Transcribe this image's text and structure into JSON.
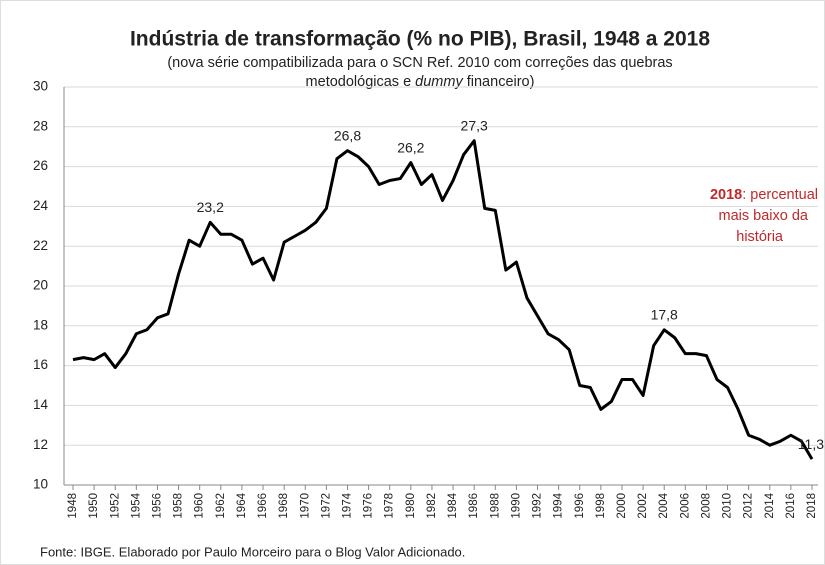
{
  "chart_data": {
    "type": "line",
    "title": "Indústria de transformação (% no PIB), Brasil, 1948 a 2018",
    "subtitle": [
      "(nova série compatibilizada  para o SCN Ref. 2010 com correções das quebras",
      "metodológicas e ",
      "dummy",
      " financeiro)"
    ],
    "annotation": [
      "2018",
      ": percentual",
      "mais baixo da",
      "história"
    ],
    "annotation_color": "#c0282a",
    "source": "Fonte: IBGE. Elaborado por Paulo Morceiro para o Blog Valor Adicionado.",
    "x": [
      1948,
      1949,
      1950,
      1951,
      1952,
      1953,
      1954,
      1955,
      1956,
      1957,
      1958,
      1959,
      1960,
      1961,
      1962,
      1963,
      1964,
      1965,
      1966,
      1967,
      1968,
      1969,
      1970,
      1971,
      1972,
      1973,
      1974,
      1975,
      1976,
      1977,
      1978,
      1979,
      1980,
      1981,
      1982,
      1983,
      1984,
      1985,
      1986,
      1987,
      1988,
      1989,
      1990,
      1991,
      1992,
      1993,
      1994,
      1995,
      1996,
      1997,
      1998,
      1999,
      2000,
      2001,
      2002,
      2003,
      2004,
      2005,
      2006,
      2007,
      2008,
      2009,
      2010,
      2011,
      2012,
      2013,
      2014,
      2015,
      2016,
      2017,
      2018
    ],
    "values": [
      16.3,
      16.4,
      16.3,
      16.6,
      15.9,
      16.6,
      17.6,
      17.8,
      18.4,
      18.6,
      20.6,
      22.3,
      22.0,
      23.2,
      22.6,
      22.6,
      22.3,
      21.1,
      21.4,
      20.3,
      22.2,
      22.5,
      22.8,
      23.2,
      23.9,
      26.4,
      26.8,
      26.5,
      26.0,
      25.1,
      25.3,
      25.4,
      26.2,
      25.1,
      25.6,
      24.3,
      25.3,
      26.6,
      27.3,
      23.9,
      23.8,
      20.8,
      21.2,
      19.4,
      18.5,
      17.6,
      17.3,
      16.8,
      15.0,
      14.9,
      13.8,
      14.2,
      15.3,
      15.3,
      14.5,
      17.0,
      17.8,
      17.4,
      16.6,
      16.6,
      16.5,
      15.3,
      14.9,
      13.8,
      12.5,
      12.3,
      12.0,
      12.2,
      12.5,
      12.2,
      11.3
    ],
    "value_labels": [
      null,
      null,
      null,
      null,
      null,
      null,
      null,
      null,
      null,
      null,
      null,
      null,
      null,
      "23,2",
      null,
      null,
      null,
      null,
      null,
      null,
      null,
      null,
      null,
      null,
      null,
      null,
      "26,8",
      null,
      null,
      null,
      null,
      null,
      "26,2",
      null,
      null,
      null,
      null,
      null,
      "27,3",
      null,
      null,
      null,
      null,
      null,
      null,
      null,
      null,
      null,
      null,
      null,
      null,
      null,
      null,
      null,
      null,
      null,
      "17,8",
      null,
      null,
      null,
      null,
      null,
      null,
      null,
      null,
      null,
      null,
      null,
      null,
      null,
      "11,3"
    ],
    "color": "#000000",
    "xlim": [
      1948,
      2018
    ],
    "xticks": [
      1948,
      1950,
      1952,
      1954,
      1956,
      1958,
      1960,
      1962,
      1964,
      1966,
      1968,
      1970,
      1972,
      1974,
      1976,
      1978,
      1980,
      1982,
      1984,
      1986,
      1988,
      1990,
      1992,
      1994,
      1996,
      1998,
      2000,
      2002,
      2004,
      2006,
      2008,
      2010,
      2012,
      2014,
      2016,
      2018
    ],
    "ylim": [
      10,
      30
    ],
    "yticks": [
      10,
      12,
      14,
      16,
      18,
      20,
      22,
      24,
      26,
      28,
      30
    ],
    "grid": true
  }
}
